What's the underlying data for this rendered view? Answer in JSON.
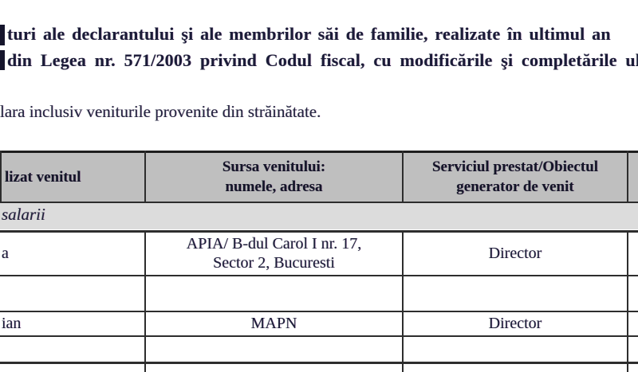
{
  "heading": {
    "line1": "turi ale declarantului şi ale membrilor săi de familie, realizate în ultimul an",
    "line2": "din Legea nr. 571/2003 privind Codul fiscal, cu modificările şi completările ul"
  },
  "note": {
    "text": "lara inclusiv veniturile provenite din străinătate."
  },
  "table": {
    "header": {
      "col_who": "lizat venitul",
      "col_source_line1": "Sursa venitului:",
      "col_source_line2": "numele, adresa",
      "col_service_line1": "Serviciul prestat/Obiectul",
      "col_service_line2": "generator de venit"
    },
    "section_label": "salarii",
    "rows": [
      {
        "who": "a",
        "source_line1": "APIA/ B-dul Carol I nr. 17,",
        "source_line2": "Sector 2, Bucuresti",
        "service": "Director"
      },
      {
        "who": "",
        "source_line1": "",
        "source_line2": "",
        "service": ""
      },
      {
        "who": "ian",
        "source_line1": "MAPN",
        "source_line2": "",
        "service": "Director"
      },
      {
        "who": "",
        "source_line1": "",
        "source_line2": "",
        "service": ""
      },
      {
        "who": "",
        "source_line1": "",
        "source_line2": "",
        "service": ""
      }
    ]
  },
  "colors": {
    "header_bg": "#bfbfbf",
    "section_bg": "#dcdcdc",
    "border": "#2d2d2d",
    "text": "#1b1b38"
  }
}
